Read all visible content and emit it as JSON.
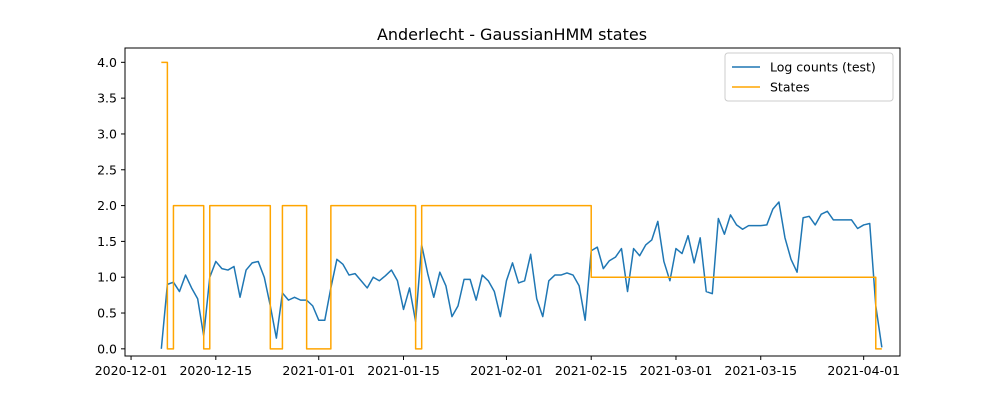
{
  "chart_data": {
    "type": "line",
    "title": "Anderlecht - GaussianHMM states",
    "xlabel": "",
    "ylabel": "",
    "xlim": [
      "2020-11-30",
      "2021-04-07"
    ],
    "ylim": [
      -0.1,
      4.2
    ],
    "x_ticks": [
      "2020-12-01",
      "2020-12-15",
      "2021-01-01",
      "2021-01-15",
      "2021-02-01",
      "2021-02-15",
      "2021-03-01",
      "2021-03-15",
      "2021-04-01"
    ],
    "y_ticks": [
      "0.0",
      "0.5",
      "1.0",
      "1.5",
      "2.0",
      "2.5",
      "3.0",
      "3.5",
      "4.0"
    ],
    "legend_position": "top-right",
    "grid": false,
    "series": [
      {
        "name": "Log counts (test)",
        "color": "#1f77b4",
        "style": "line",
        "points": [
          [
            "2020-12-06",
            0.0
          ],
          [
            "2020-12-07",
            0.9
          ],
          [
            "2020-12-08",
            0.93
          ],
          [
            "2020-12-09",
            0.8
          ],
          [
            "2020-12-10",
            1.03
          ],
          [
            "2020-12-11",
            0.85
          ],
          [
            "2020-12-12",
            0.7
          ],
          [
            "2020-12-13",
            0.18
          ],
          [
            "2020-12-14",
            1.0
          ],
          [
            "2020-12-15",
            1.22
          ],
          [
            "2020-12-16",
            1.12
          ],
          [
            "2020-12-17",
            1.1
          ],
          [
            "2020-12-18",
            1.15
          ],
          [
            "2020-12-19",
            0.72
          ],
          [
            "2020-12-20",
            1.1
          ],
          [
            "2020-12-21",
            1.2
          ],
          [
            "2020-12-22",
            1.22
          ],
          [
            "2020-12-23",
            1.0
          ],
          [
            "2020-12-24",
            0.6
          ],
          [
            "2020-12-25",
            0.15
          ],
          [
            "2020-12-26",
            0.78
          ],
          [
            "2020-12-27",
            0.68
          ],
          [
            "2020-12-28",
            0.72
          ],
          [
            "2020-12-29",
            0.68
          ],
          [
            "2020-12-30",
            0.68
          ],
          [
            "2020-12-31",
            0.6
          ],
          [
            "2021-01-01",
            0.4
          ],
          [
            "2021-01-02",
            0.4
          ],
          [
            "2021-01-03",
            0.85
          ],
          [
            "2021-01-04",
            1.25
          ],
          [
            "2021-01-05",
            1.18
          ],
          [
            "2021-01-06",
            1.03
          ],
          [
            "2021-01-07",
            1.05
          ],
          [
            "2021-01-08",
            0.95
          ],
          [
            "2021-01-09",
            0.85
          ],
          [
            "2021-01-10",
            1.0
          ],
          [
            "2021-01-11",
            0.95
          ],
          [
            "2021-01-12",
            1.02
          ],
          [
            "2021-01-13",
            1.1
          ],
          [
            "2021-01-14",
            0.95
          ],
          [
            "2021-01-15",
            0.55
          ],
          [
            "2021-01-16",
            0.85
          ],
          [
            "2021-01-17",
            0.38
          ],
          [
            "2021-01-18",
            1.45
          ],
          [
            "2021-01-19",
            1.05
          ],
          [
            "2021-01-20",
            0.72
          ],
          [
            "2021-01-21",
            1.07
          ],
          [
            "2021-01-22",
            0.88
          ],
          [
            "2021-01-23",
            0.45
          ],
          [
            "2021-01-24",
            0.6
          ],
          [
            "2021-01-25",
            0.97
          ],
          [
            "2021-01-26",
            0.97
          ],
          [
            "2021-01-27",
            0.68
          ],
          [
            "2021-01-28",
            1.03
          ],
          [
            "2021-01-29",
            0.95
          ],
          [
            "2021-01-30",
            0.8
          ],
          [
            "2021-01-31",
            0.45
          ],
          [
            "2021-02-01",
            0.95
          ],
          [
            "2021-02-02",
            1.2
          ],
          [
            "2021-02-03",
            0.92
          ],
          [
            "2021-02-04",
            0.95
          ],
          [
            "2021-02-05",
            1.32
          ],
          [
            "2021-02-06",
            0.7
          ],
          [
            "2021-02-07",
            0.45
          ],
          [
            "2021-02-08",
            0.95
          ],
          [
            "2021-02-09",
            1.03
          ],
          [
            "2021-02-10",
            1.03
          ],
          [
            "2021-02-11",
            1.06
          ],
          [
            "2021-02-12",
            1.03
          ],
          [
            "2021-02-13",
            0.88
          ],
          [
            "2021-02-14",
            0.4
          ],
          [
            "2021-02-15",
            1.37
          ],
          [
            "2021-02-16",
            1.42
          ],
          [
            "2021-02-17",
            1.12
          ],
          [
            "2021-02-18",
            1.23
          ],
          [
            "2021-02-19",
            1.28
          ],
          [
            "2021-02-20",
            1.4
          ],
          [
            "2021-02-21",
            0.8
          ],
          [
            "2021-02-22",
            1.4
          ],
          [
            "2021-02-23",
            1.3
          ],
          [
            "2021-02-24",
            1.45
          ],
          [
            "2021-02-25",
            1.52
          ],
          [
            "2021-02-26",
            1.78
          ],
          [
            "2021-02-27",
            1.22
          ],
          [
            "2021-02-28",
            0.95
          ],
          [
            "2021-03-01",
            1.4
          ],
          [
            "2021-03-02",
            1.33
          ],
          [
            "2021-03-03",
            1.58
          ],
          [
            "2021-03-04",
            1.2
          ],
          [
            "2021-03-05",
            1.55
          ],
          [
            "2021-03-06",
            0.8
          ],
          [
            "2021-03-07",
            0.77
          ],
          [
            "2021-03-08",
            1.82
          ],
          [
            "2021-03-09",
            1.6
          ],
          [
            "2021-03-10",
            1.87
          ],
          [
            "2021-03-11",
            1.73
          ],
          [
            "2021-03-12",
            1.67
          ],
          [
            "2021-03-13",
            1.72
          ],
          [
            "2021-03-14",
            1.72
          ],
          [
            "2021-03-15",
            1.72
          ],
          [
            "2021-03-16",
            1.73
          ],
          [
            "2021-03-17",
            1.95
          ],
          [
            "2021-03-18",
            2.05
          ],
          [
            "2021-03-19",
            1.55
          ],
          [
            "2021-03-20",
            1.25
          ],
          [
            "2021-03-21",
            1.07
          ],
          [
            "2021-03-22",
            1.83
          ],
          [
            "2021-03-23",
            1.85
          ],
          [
            "2021-03-24",
            1.73
          ],
          [
            "2021-03-25",
            1.88
          ],
          [
            "2021-03-26",
            1.92
          ],
          [
            "2021-03-27",
            1.8
          ],
          [
            "2021-03-28",
            1.8
          ],
          [
            "2021-03-29",
            1.8
          ],
          [
            "2021-03-30",
            1.8
          ],
          [
            "2021-03-31",
            1.68
          ],
          [
            "2021-04-01",
            1.73
          ],
          [
            "2021-04-02",
            1.75
          ],
          [
            "2021-04-03",
            0.6
          ],
          [
            "2021-04-04",
            0.02
          ]
        ]
      },
      {
        "name": "States",
        "color": "#ffa500",
        "style": "step",
        "points": [
          [
            "2020-12-06",
            4
          ],
          [
            "2020-12-07",
            0
          ],
          [
            "2020-12-08",
            2
          ],
          [
            "2020-12-09",
            2
          ],
          [
            "2020-12-10",
            2
          ],
          [
            "2020-12-11",
            2
          ],
          [
            "2020-12-12",
            2
          ],
          [
            "2020-12-13",
            0
          ],
          [
            "2020-12-14",
            2
          ],
          [
            "2020-12-15",
            2
          ],
          [
            "2020-12-16",
            2
          ],
          [
            "2020-12-17",
            2
          ],
          [
            "2020-12-18",
            2
          ],
          [
            "2020-12-19",
            2
          ],
          [
            "2020-12-20",
            2
          ],
          [
            "2020-12-21",
            2
          ],
          [
            "2020-12-22",
            2
          ],
          [
            "2020-12-23",
            2
          ],
          [
            "2020-12-24",
            0
          ],
          [
            "2020-12-25",
            0
          ],
          [
            "2020-12-26",
            2
          ],
          [
            "2020-12-27",
            2
          ],
          [
            "2020-12-28",
            2
          ],
          [
            "2020-12-29",
            2
          ],
          [
            "2020-12-30",
            0
          ],
          [
            "2020-12-31",
            0
          ],
          [
            "2021-01-01",
            0
          ],
          [
            "2021-01-02",
            0
          ],
          [
            "2021-01-03",
            2
          ],
          [
            "2021-01-17",
            0
          ],
          [
            "2021-01-18",
            2
          ],
          [
            "2021-02-14",
            2
          ],
          [
            "2021-02-15",
            1
          ],
          [
            "2021-04-03",
            0
          ],
          [
            "2021-04-04",
            0
          ]
        ]
      }
    ]
  }
}
